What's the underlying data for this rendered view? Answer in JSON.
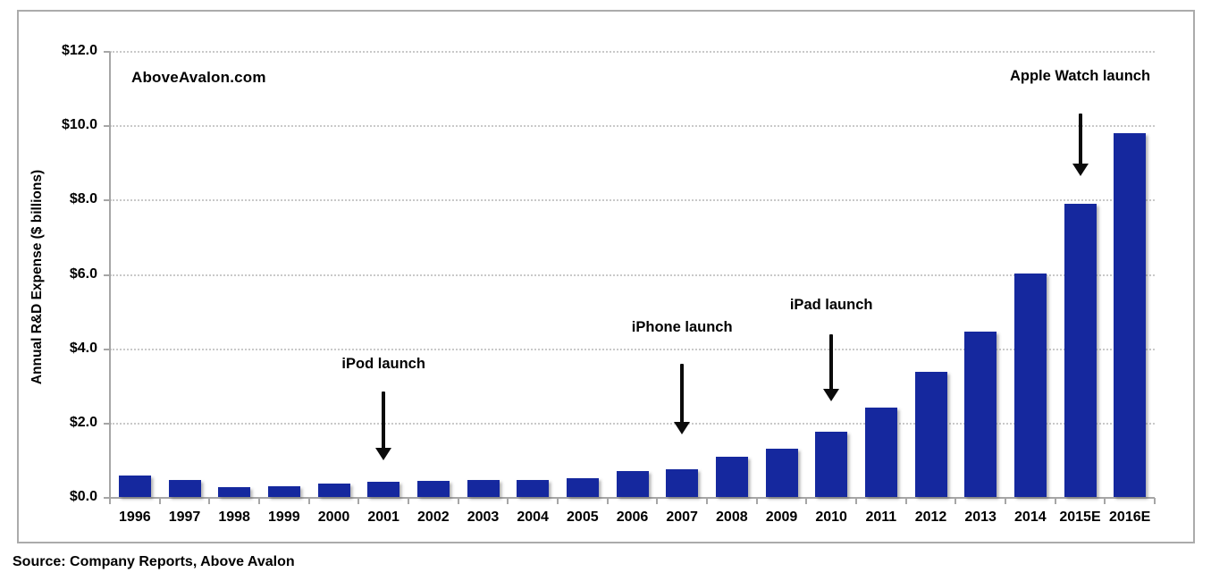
{
  "watermark": "AboveAvalon.com",
  "source": "Source: Company Reports, Above Avalon",
  "chart_data": {
    "type": "bar",
    "title": "",
    "xlabel": "",
    "ylabel": "Annual R&D Expense ($ billions)",
    "ylim": [
      0,
      12
    ],
    "y_tick_step": 2,
    "y_tick_labels": [
      "$0.0",
      "$2.0",
      "$4.0",
      "$6.0",
      "$8.0",
      "$10.0",
      "$12.0"
    ],
    "grid": "horizontal-dotted",
    "bar_color": "#15289e",
    "categories": [
      "1996",
      "1997",
      "1998",
      "1999",
      "2000",
      "2001",
      "2002",
      "2003",
      "2004",
      "2005",
      "2006",
      "2007",
      "2008",
      "2009",
      "2010",
      "2011",
      "2012",
      "2013",
      "2014",
      "2015E",
      "2016E"
    ],
    "values": [
      0.6,
      0.49,
      0.3,
      0.31,
      0.38,
      0.43,
      0.45,
      0.47,
      0.49,
      0.53,
      0.71,
      0.78,
      1.1,
      1.33,
      1.78,
      2.43,
      3.38,
      4.48,
      6.04,
      7.9,
      9.8
    ],
    "annotations": [
      {
        "label": "iPod launch",
        "year": "2001",
        "label_at_value": 3.55,
        "arrow_from_value": 2.85,
        "arrow_to_value": 1.0
      },
      {
        "label": "iPhone launch",
        "year": "2007",
        "label_at_value": 4.55,
        "arrow_from_value": 3.6,
        "arrow_to_value": 1.7
      },
      {
        "label": "iPad launch",
        "year": "2010",
        "label_at_value": 5.15,
        "arrow_from_value": 4.4,
        "arrow_to_value": 2.6
      },
      {
        "label": "Apple Watch launch",
        "year": "2015E",
        "label_at_value": 11.3,
        "arrow_from_value": 10.35,
        "arrow_to_value": 8.65
      }
    ]
  }
}
